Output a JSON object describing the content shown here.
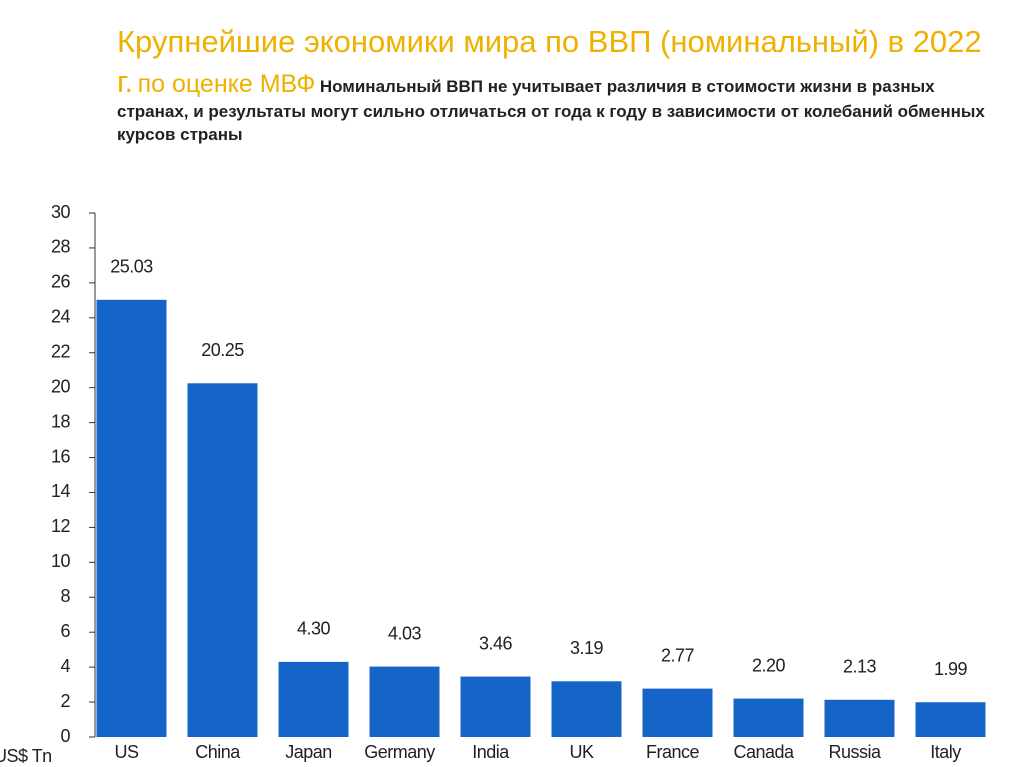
{
  "chart_data": {
    "type": "bar",
    "title": "Крупнейшие экономики мира по ВВП (номинальный) в 2022 г.",
    "subtitle": "по оценке МВФ",
    "note": "Номинальный ВВП не учитывает различия в стоимости жизни в разных странах, и результаты могут сильно отличаться от года к году в зависимости от колебаний обменных курсов  страны",
    "y_label": "US$ Tn",
    "categories": [
      "US",
      "China",
      "Japan",
      "Germany",
      "India",
      "UK",
      "France",
      "Canada",
      "Russia",
      "Italy"
    ],
    "values": [
      25.03,
      20.25,
      4.3,
      4.03,
      3.46,
      3.19,
      2.77,
      2.2,
      2.13,
      1.99
    ],
    "value_labels": [
      "25.03",
      "20.25",
      "4.30",
      "4.03",
      "3.46",
      "3.19",
      "2.77",
      "2.20",
      "2.13",
      "1.99"
    ],
    "color": "#1565c8",
    "ylim": [
      0,
      30
    ],
    "yticks": [
      0,
      2,
      4,
      6,
      8,
      10,
      12,
      14,
      16,
      18,
      20,
      22,
      24,
      26,
      28,
      30
    ]
  }
}
